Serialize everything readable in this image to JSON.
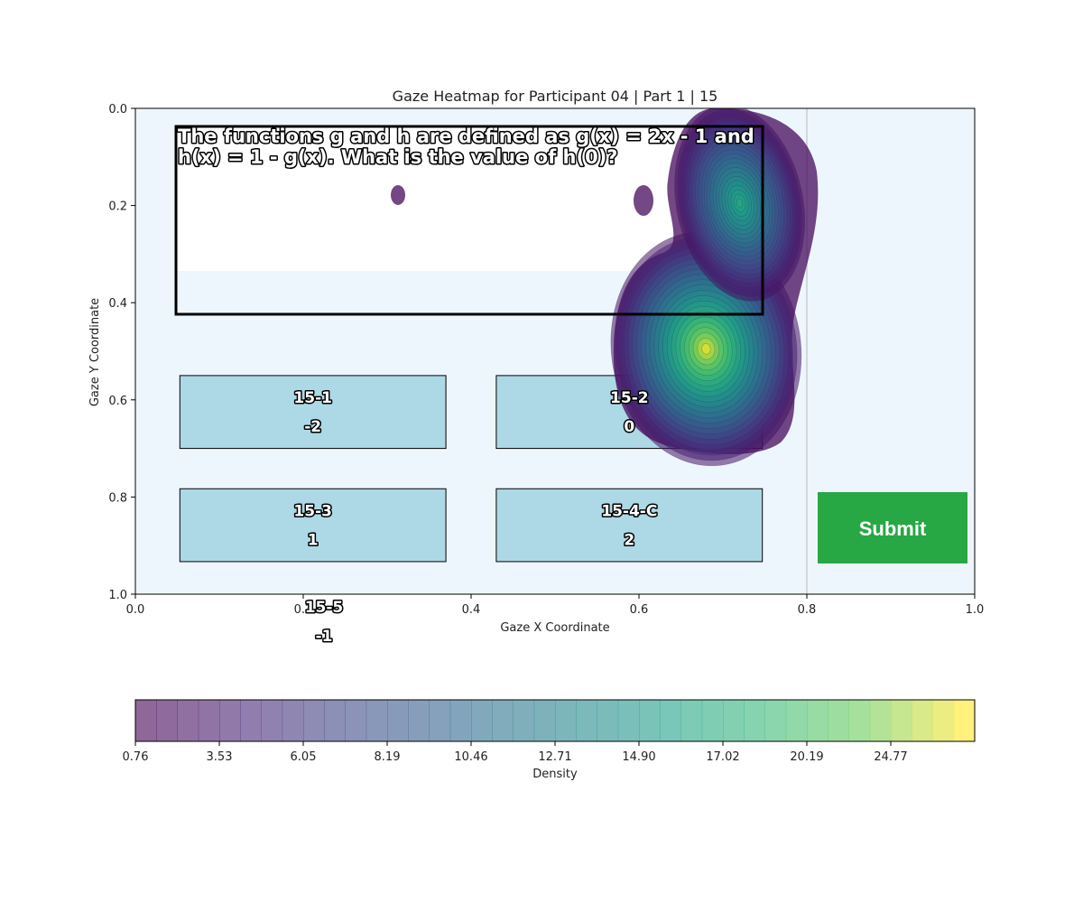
{
  "chart_data": {
    "type": "heatmap",
    "title": "Gaze Heatmap for Participant 04 | Part 1 | 15",
    "xlabel": "Gaze X Coordinate",
    "ylabel": "Gaze Y Coordinate",
    "xlim": [
      0.0,
      1.0
    ],
    "ylim": [
      1.0,
      0.0
    ],
    "x_ticks": [
      "0.0",
      "0.2",
      "0.4",
      "0.6",
      "0.8",
      "1.0"
    ],
    "y_ticks": [
      "0.0",
      "0.2",
      "0.4",
      "0.6",
      "0.8",
      "1.0"
    ],
    "question": {
      "line1": "The functions g and h are defined as g(x) = 2x - 1 and",
      "line2": "h(x) = 1 - g(x). What is the value of h(0)?"
    },
    "options": [
      {
        "id": "15-1",
        "value": "-2",
        "x0": 0.053,
        "x1": 0.37,
        "y0": 0.55,
        "y1": 0.7
      },
      {
        "id": "15-2",
        "value": "0",
        "x0": 0.43,
        "x1": 0.747,
        "y0": 0.55,
        "y1": 0.7
      },
      {
        "id": "15-3",
        "value": "1",
        "x0": 0.053,
        "x1": 0.37,
        "y0": 0.783,
        "y1": 0.933
      },
      {
        "id": "15-4-C",
        "value": "2",
        "x0": 0.43,
        "x1": 0.747,
        "y0": 0.783,
        "y1": 0.933
      },
      {
        "id": "15-5",
        "value": "-1"
      }
    ],
    "submit_label": "Submit",
    "density_peaks": [
      {
        "x": 0.68,
        "y": 0.495,
        "density": 27.5
      },
      {
        "x": 0.72,
        "y": 0.195,
        "density": 19.0
      }
    ],
    "colorbar": {
      "label": "Density",
      "ticks": [
        "0.76",
        "3.53",
        "6.05",
        "8.19",
        "10.46",
        "12.71",
        "14.90",
        "17.02",
        "20.19",
        "24.77"
      ],
      "colormap": "viridis"
    },
    "colors": {
      "background": "#eef6fd",
      "option_fill": "#add8e6",
      "submit": "#28a745"
    }
  }
}
